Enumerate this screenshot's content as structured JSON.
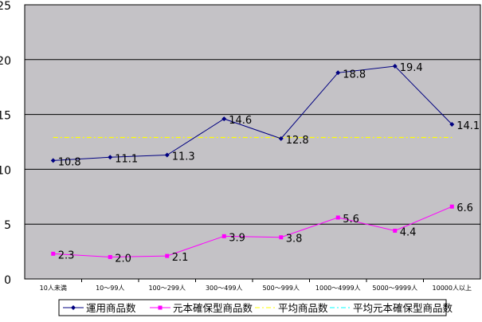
{
  "chart_data": {
    "type": "line",
    "title": "",
    "xlabel": "",
    "ylabel": "",
    "ylim": [
      0,
      25
    ],
    "yticks": [
      0,
      5,
      10,
      15,
      20,
      25
    ],
    "grid": true,
    "legend_position": "bottom",
    "categories": [
      "10人未満",
      "10～99人",
      "100～299人",
      "300～499人",
      "500～999人",
      "1000～4999人",
      "5000～9999人",
      "10000人以上"
    ],
    "series": [
      {
        "name": "運用商品数",
        "values": [
          10.8,
          11.1,
          11.3,
          14.6,
          12.8,
          18.8,
          19.4,
          14.1
        ],
        "color": "#000080",
        "labels": [
          "10.8",
          "11.1",
          "11.3",
          "14.6",
          "12.8",
          "18.8",
          "19.4",
          "14.1"
        ]
      },
      {
        "name": "元本確保型商品数",
        "values": [
          2.3,
          2.0,
          2.1,
          3.9,
          3.8,
          5.6,
          4.4,
          6.6
        ],
        "color": "#ff00ff",
        "labels": [
          "2.3",
          "2.0",
          "2.1",
          "3.9",
          "3.8",
          "5.6",
          "4.4",
          "6.6"
        ]
      },
      {
        "name": "平均商品数",
        "value": 12.9,
        "color": "#ffff00",
        "style": "dash-dot"
      },
      {
        "name": "平均元本確保型商品数",
        "color": "#00ffff",
        "style": "dash-dot"
      }
    ],
    "plot_background": "#c0c0c0"
  }
}
